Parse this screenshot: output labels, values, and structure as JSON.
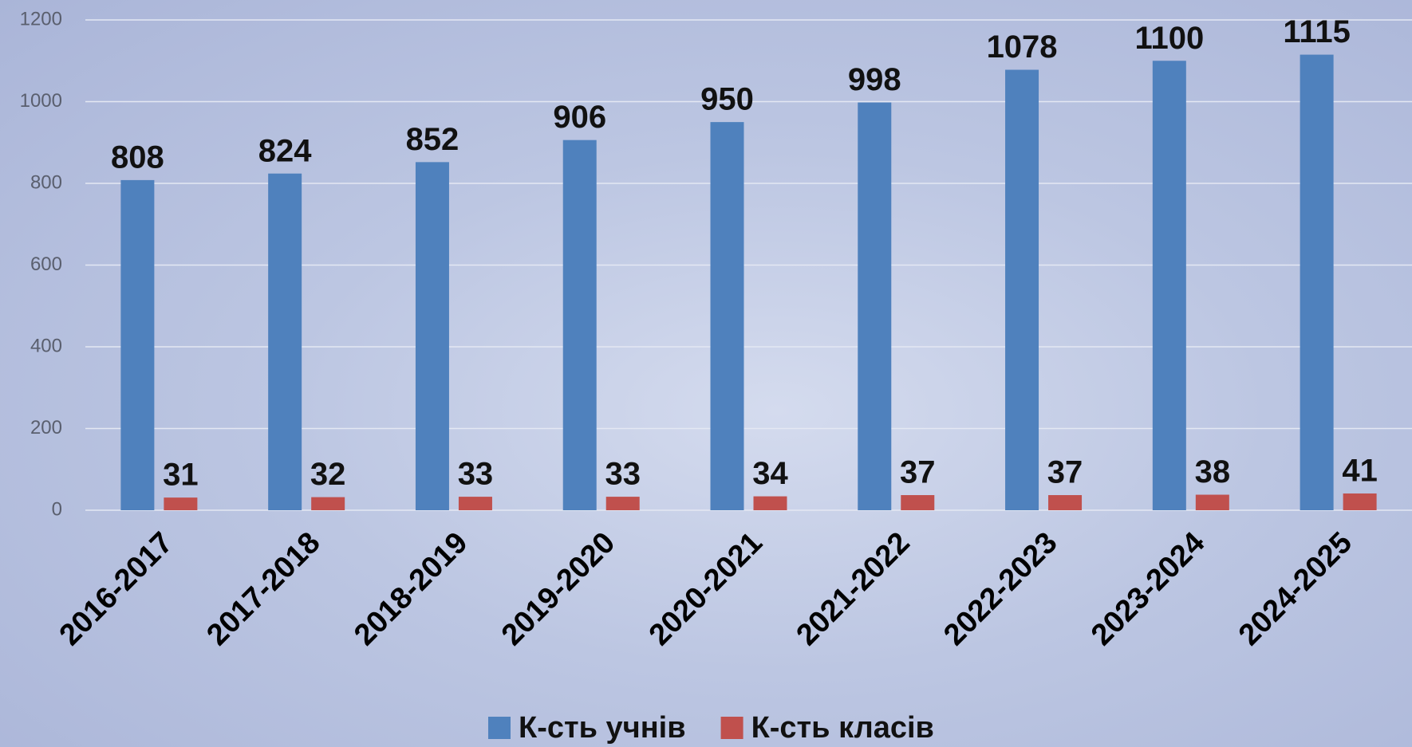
{
  "chart_data": {
    "type": "bar",
    "categories": [
      "2016-2017",
      "2017-2018",
      "2018-2019",
      "2019-2020",
      "2020-2021",
      "2021-2022",
      "2022-2023",
      "2023-2024",
      "2024-2025"
    ],
    "series": [
      {
        "name": "К-сть учнів",
        "color": "#4f81bd",
        "values": [
          808,
          824,
          852,
          906,
          950,
          998,
          1078,
          1100,
          1115
        ]
      },
      {
        "name": "К-сть класів",
        "color": "#c0504d",
        "values": [
          31,
          32,
          33,
          33,
          34,
          37,
          37,
          38,
          41
        ]
      }
    ],
    "ylim": [
      0,
      1200
    ],
    "yticks": [
      0,
      200,
      400,
      600,
      800,
      1000,
      1200
    ],
    "grid": true,
    "legend": "bottom"
  }
}
